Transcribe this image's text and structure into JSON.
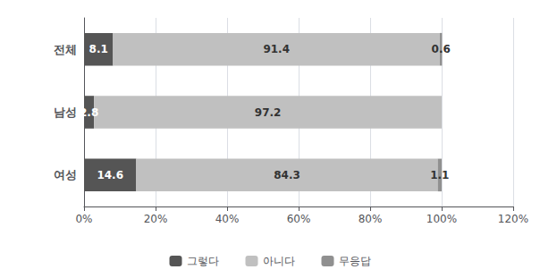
{
  "chart_data": {
    "type": "bar",
    "orientation": "horizontal",
    "stacked": true,
    "categories": [
      "전체",
      "남성",
      "여성"
    ],
    "series": [
      {
        "name": "그렇다",
        "color": "#555555",
        "values": [
          8.1,
          2.8,
          14.6
        ]
      },
      {
        "name": "아니다",
        "color": "#c0c0c0",
        "values": [
          91.4,
          97.2,
          84.3
        ]
      },
      {
        "name": "무응답",
        "color": "#909090",
        "values": [
          0.6,
          0.0,
          1.1
        ]
      }
    ],
    "xlim": [
      0,
      120
    ],
    "xticks": [
      {
        "value": 0,
        "label": "0%"
      },
      {
        "value": 20,
        "label": "20%"
      },
      {
        "value": 40,
        "label": "40%"
      },
      {
        "value": 60,
        "label": "60%"
      },
      {
        "value": 80,
        "label": "80%"
      },
      {
        "value": 100,
        "label": "100%"
      },
      {
        "value": 120,
        "label": "120%"
      }
    ],
    "grid": true,
    "legend": "bottom",
    "data_labels": true
  }
}
